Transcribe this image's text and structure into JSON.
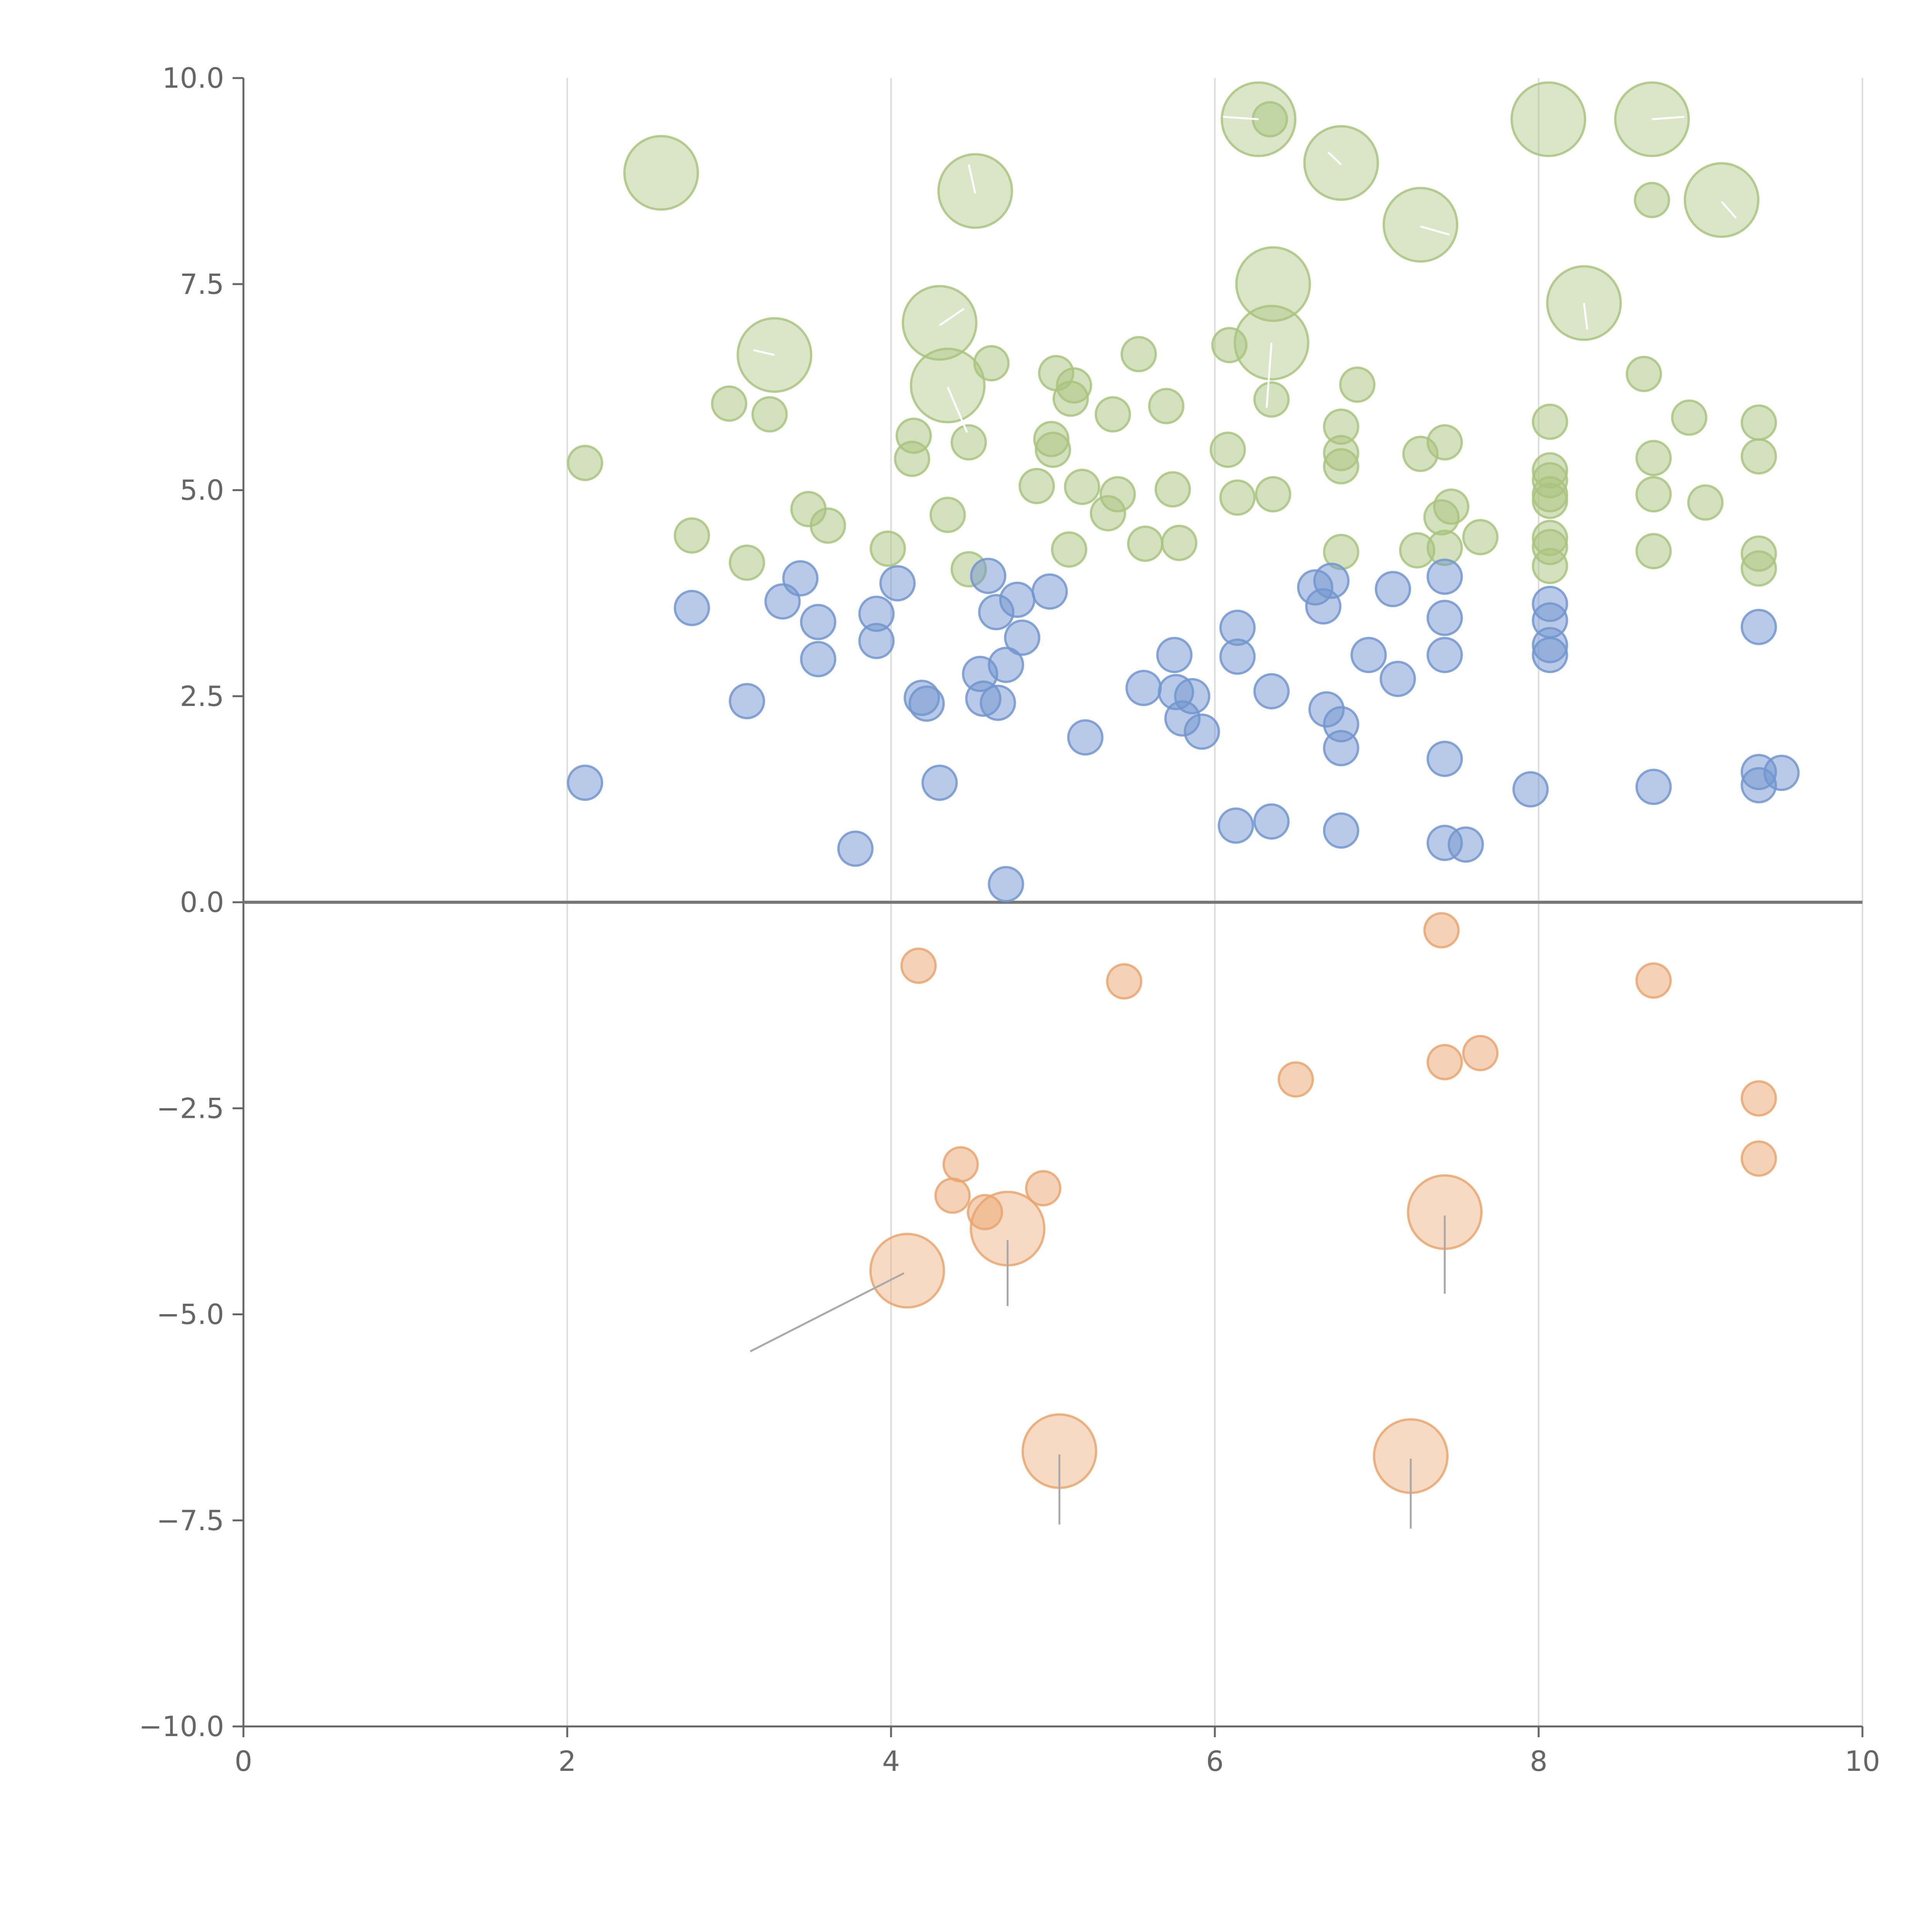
{
  "chart_data": {
    "type": "scatter",
    "title": "",
    "xlabel": "",
    "ylabel": "",
    "xlim": [
      0,
      10
    ],
    "ylim": [
      -10,
      10
    ],
    "x_ticks": [
      0,
      2,
      4,
      6,
      8,
      10
    ],
    "x_tick_labels": [
      "0",
      "2",
      "4",
      "6",
      "8",
      "10"
    ],
    "y_ticks": [
      -10,
      -7.5,
      -5,
      -2.5,
      0,
      2.5,
      5,
      7.5,
      10
    ],
    "y_tick_labels": [
      "−10.0",
      "−7.5",
      "−5.0",
      "−2.5",
      "0.0",
      "2.5",
      "5.0",
      "7.5",
      "10.0"
    ],
    "grid": "vertical",
    "zero_line": true,
    "legend": "none",
    "colors": {
      "green": "#a9c47f",
      "blue": "#7296cf",
      "orange": "#e9a66f",
      "axis": "#666666",
      "grid": "#dddddd",
      "zero_line": "#777777",
      "leader": "#aaaaaa"
    },
    "series": [
      {
        "color": "green",
        "points": [
          [
            2.58,
            8.85,
            1
          ],
          [
            4.52,
            8.63,
            1
          ],
          [
            6.27,
            9.5,
            1
          ],
          [
            6.34,
            9.5,
            0
          ],
          [
            6.78,
            8.97,
            1
          ],
          [
            8.06,
            9.5,
            1
          ],
          [
            8.7,
            9.5,
            1
          ],
          [
            8.7,
            8.52,
            0
          ],
          [
            9.13,
            8.52,
            1
          ],
          [
            7.27,
            8.22,
            1
          ],
          [
            6.36,
            7.5,
            1
          ],
          [
            8.28,
            7.27,
            1
          ],
          [
            4.3,
            7.03,
            1
          ],
          [
            6.35,
            6.79,
            1
          ],
          [
            3.28,
            6.64,
            1
          ],
          [
            4.35,
            6.27,
            1
          ],
          [
            2.11,
            5.33,
            0
          ],
          [
            2.77,
            4.45,
            0
          ],
          [
            3.0,
            6.05,
            0
          ],
          [
            3.25,
            5.92,
            0
          ],
          [
            3.11,
            4.12,
            0
          ],
          [
            3.49,
            4.77,
            0
          ],
          [
            3.61,
            4.57,
            0
          ],
          [
            3.98,
            4.29,
            0
          ],
          [
            4.14,
            5.66,
            0
          ],
          [
            4.13,
            5.38,
            0
          ],
          [
            4.35,
            4.7,
            0
          ],
          [
            4.48,
            5.58,
            0
          ],
          [
            4.62,
            6.54,
            0
          ],
          [
            4.48,
            4.04,
            0
          ],
          [
            4.9,
            5.05,
            0
          ],
          [
            4.99,
            5.62,
            0
          ],
          [
            5.0,
            5.49,
            0
          ],
          [
            5.02,
            6.42,
            0
          ],
          [
            5.13,
            6.27,
            0
          ],
          [
            5.11,
            6.11,
            0
          ],
          [
            5.18,
            5.04,
            0
          ],
          [
            5.1,
            4.28,
            0
          ],
          [
            5.37,
            5.92,
            0
          ],
          [
            5.4,
            4.95,
            0
          ],
          [
            5.34,
            4.72,
            0
          ],
          [
            5.53,
            6.65,
            0
          ],
          [
            5.57,
            4.35,
            0
          ],
          [
            5.7,
            6.02,
            0
          ],
          [
            5.74,
            5.01,
            0
          ],
          [
            5.78,
            4.36,
            0
          ],
          [
            6.09,
            6.76,
            0
          ],
          [
            6.08,
            5.49,
            0
          ],
          [
            6.14,
            4.91,
            0
          ],
          [
            6.35,
            6.1,
            0
          ],
          [
            6.36,
            4.95,
            0
          ],
          [
            6.78,
            5.77,
            0
          ],
          [
            6.78,
            5.45,
            0
          ],
          [
            6.78,
            5.29,
            0
          ],
          [
            6.78,
            4.25,
            0
          ],
          [
            6.88,
            6.28,
            0
          ],
          [
            7.27,
            5.44,
            0
          ],
          [
            7.25,
            4.27,
            0
          ],
          [
            7.42,
            5.58,
            0
          ],
          [
            7.4,
            4.67,
            0
          ],
          [
            7.46,
            4.8,
            0
          ],
          [
            7.42,
            4.3,
            0
          ],
          [
            7.64,
            4.43,
            0
          ],
          [
            8.07,
            5.83,
            0
          ],
          [
            8.07,
            5.24,
            0
          ],
          [
            8.07,
            5.12,
            0
          ],
          [
            8.07,
            4.95,
            0
          ],
          [
            8.07,
            4.87,
            0
          ],
          [
            8.07,
            4.42,
            0
          ],
          [
            8.07,
            4.31,
            0
          ],
          [
            8.07,
            4.08,
            0
          ],
          [
            8.65,
            6.41,
            0
          ],
          [
            8.71,
            5.39,
            0
          ],
          [
            8.71,
            4.95,
            0
          ],
          [
            8.71,
            4.26,
            0
          ],
          [
            8.93,
            5.88,
            0
          ],
          [
            9.03,
            4.85,
            0
          ],
          [
            9.36,
            5.82,
            0
          ],
          [
            9.36,
            5.41,
            0
          ],
          [
            9.36,
            4.23,
            0
          ],
          [
            9.36,
            4.05,
            0
          ]
        ]
      },
      {
        "color": "blue",
        "points": [
          [
            2.11,
            1.45,
            0
          ],
          [
            2.77,
            3.57,
            0
          ],
          [
            3.11,
            2.44,
            0
          ],
          [
            3.33,
            3.65,
            0
          ],
          [
            3.44,
            3.93,
            0
          ],
          [
            3.55,
            3.4,
            0
          ],
          [
            3.55,
            2.95,
            0
          ],
          [
            3.78,
            0.65,
            0
          ],
          [
            3.91,
            3.5,
            0
          ],
          [
            3.91,
            3.17,
            0
          ],
          [
            4.04,
            3.87,
            0
          ],
          [
            4.19,
            2.48,
            0
          ],
          [
            4.22,
            2.41,
            0
          ],
          [
            4.3,
            1.45,
            0
          ],
          [
            4.55,
            2.77,
            0
          ],
          [
            4.57,
            2.47,
            0
          ],
          [
            4.6,
            3.96,
            0
          ],
          [
            4.65,
            3.52,
            0
          ],
          [
            4.66,
            2.42,
            0
          ],
          [
            4.71,
            2.88,
            0
          ],
          [
            4.71,
            0.22,
            0
          ],
          [
            4.78,
            3.67,
            0
          ],
          [
            4.81,
            3.21,
            0
          ],
          [
            4.98,
            3.77,
            0
          ],
          [
            5.2,
            2.0,
            0
          ],
          [
            5.56,
            2.6,
            0
          ],
          [
            5.75,
            3.0,
            0
          ],
          [
            5.76,
            2.55,
            0
          ],
          [
            5.8,
            2.23,
            0
          ],
          [
            5.86,
            2.5,
            0
          ],
          [
            5.92,
            2.07,
            0
          ],
          [
            6.13,
            0.93,
            0
          ],
          [
            6.14,
            3.33,
            0
          ],
          [
            6.14,
            2.98,
            0
          ],
          [
            6.35,
            2.56,
            0
          ],
          [
            6.35,
            0.98,
            0
          ],
          [
            6.62,
            3.82,
            0
          ],
          [
            6.67,
            3.59,
            0
          ],
          [
            6.69,
            2.34,
            0
          ],
          [
            6.72,
            3.9,
            0
          ],
          [
            6.78,
            2.16,
            0
          ],
          [
            6.78,
            1.87,
            0
          ],
          [
            6.78,
            0.87,
            0
          ],
          [
            6.95,
            3.0,
            0
          ],
          [
            7.1,
            3.8,
            0
          ],
          [
            7.13,
            2.71,
            0
          ],
          [
            7.42,
            3.95,
            0
          ],
          [
            7.42,
            3.45,
            0
          ],
          [
            7.42,
            3.0,
            0
          ],
          [
            7.42,
            1.74,
            0
          ],
          [
            7.42,
            0.72,
            0
          ],
          [
            7.55,
            0.7,
            0
          ],
          [
            7.95,
            1.37,
            0
          ],
          [
            8.07,
            3.62,
            0
          ],
          [
            8.07,
            3.42,
            0
          ],
          [
            8.07,
            3.12,
            0
          ],
          [
            8.07,
            3.0,
            0
          ],
          [
            8.71,
            1.4,
            0
          ],
          [
            9.36,
            3.34,
            0
          ],
          [
            9.36,
            1.58,
            0
          ],
          [
            9.36,
            1.42,
            0
          ],
          [
            9.5,
            1.57,
            0
          ]
        ]
      },
      {
        "color": "orange",
        "points": [
          [
            4.17,
            -0.77,
            0
          ],
          [
            5.44,
            -0.96,
            0
          ],
          [
            7.4,
            -0.34,
            0
          ],
          [
            8.71,
            -0.95,
            0
          ],
          [
            6.5,
            -2.15,
            0
          ],
          [
            7.42,
            -1.94,
            0
          ],
          [
            7.64,
            -1.83,
            0
          ],
          [
            9.36,
            -2.38,
            0
          ],
          [
            9.36,
            -3.11,
            0
          ],
          [
            4.43,
            -3.18,
            0
          ],
          [
            4.38,
            -3.56,
            0
          ],
          [
            4.58,
            -3.76,
            0
          ],
          [
            4.94,
            -3.47,
            0
          ],
          [
            4.72,
            -3.96,
            1
          ],
          [
            4.1,
            -4.47,
            1
          ],
          [
            7.42,
            -3.76,
            1
          ],
          [
            5.04,
            -6.66,
            1
          ],
          [
            7.21,
            -6.72,
            1
          ]
        ]
      }
    ]
  }
}
